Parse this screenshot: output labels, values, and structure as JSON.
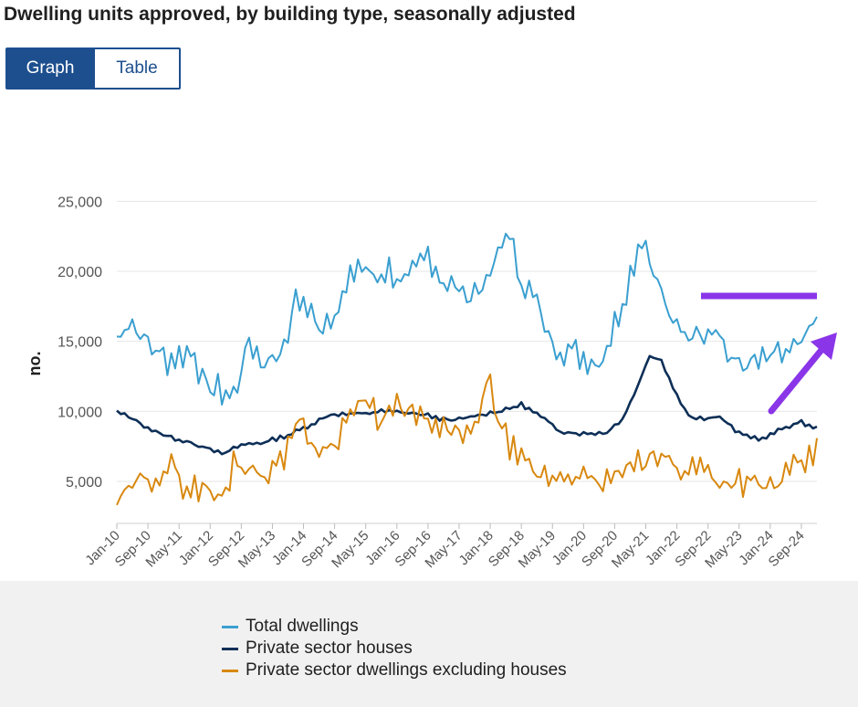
{
  "title": "Dwelling units approved, by building type, seasonally adjusted",
  "tabs": [
    {
      "label": "Graph",
      "active": true
    },
    {
      "label": "Table",
      "active": false
    }
  ],
  "annotation_color": "#8a35e8",
  "chart_data": {
    "type": "line",
    "ylabel": "no.",
    "xlabel": "",
    "ylim": [
      2000,
      26000
    ],
    "y_ticks": [
      5000,
      10000,
      15000,
      20000,
      25000
    ],
    "y_tick_labels": [
      "5,000",
      "10,000",
      "15,000",
      "20,000",
      "25,000"
    ],
    "x_tick_labels": [
      "Jan-10",
      "Sep-10",
      "May-11",
      "Jan-12",
      "Sep-12",
      "May-13",
      "Jan-14",
      "Sep-14",
      "May-15",
      "Jan-16",
      "Sep-16",
      "May-17",
      "Jan-18",
      "Sep-18",
      "May-19",
      "Jan-20",
      "Sep-20",
      "May-21",
      "Jan-22",
      "Sep-22",
      "May-23",
      "Jan-24",
      "Sep-24"
    ],
    "x_tick_index": [
      0,
      8,
      16,
      24,
      32,
      40,
      48,
      56,
      64,
      72,
      80,
      88,
      96,
      104,
      112,
      120,
      128,
      136,
      144,
      152,
      160,
      168,
      176
    ],
    "grid": true,
    "legend_position": "bottom-left",
    "series": [
      {
        "name": "Total dwellings",
        "color": "#3a9fd0",
        "values": []
      },
      {
        "name": "Private sector houses",
        "color": "#0d2f57",
        "values": []
      },
      {
        "name": "Private sector dwellings excluding houses",
        "color": "#d8880f",
        "values": []
      }
    ],
    "total_dwellings_anchors": [
      [
        0,
        15000
      ],
      [
        3,
        16700
      ],
      [
        8,
        14800
      ],
      [
        13,
        13700
      ],
      [
        20,
        14400
      ],
      [
        22,
        11900
      ],
      [
        30,
        11100
      ],
      [
        34,
        15000
      ],
      [
        38,
        13400
      ],
      [
        44,
        15000
      ],
      [
        46,
        18400
      ],
      [
        52,
        16100
      ],
      [
        58,
        17900
      ],
      [
        62,
        20600
      ],
      [
        66,
        19500
      ],
      [
        70,
        20200
      ],
      [
        74,
        18800
      ],
      [
        80,
        21300
      ],
      [
        84,
        19300
      ],
      [
        90,
        18300
      ],
      [
        96,
        19400
      ],
      [
        100,
        23000
      ],
      [
        104,
        19500
      ],
      [
        108,
        17700
      ],
      [
        110,
        15800
      ],
      [
        114,
        14600
      ],
      [
        120,
        13900
      ],
      [
        124,
        13600
      ],
      [
        127,
        15400
      ],
      [
        130,
        17900
      ],
      [
        135,
        22700
      ],
      [
        138,
        20200
      ],
      [
        143,
        15900
      ],
      [
        148,
        15600
      ],
      [
        154,
        16300
      ],
      [
        158,
        13400
      ],
      [
        165,
        13400
      ],
      [
        170,
        13900
      ],
      [
        176,
        14500
      ],
      [
        180,
        16500
      ]
    ],
    "houses_anchors": [
      [
        0,
        9950
      ],
      [
        4,
        9500
      ],
      [
        10,
        8500
      ],
      [
        18,
        7800
      ],
      [
        24,
        7400
      ],
      [
        27,
        6900
      ],
      [
        32,
        7600
      ],
      [
        38,
        7800
      ],
      [
        44,
        8300
      ],
      [
        48,
        8800
      ],
      [
        55,
        9800
      ],
      [
        62,
        9800
      ],
      [
        68,
        10000
      ],
      [
        75,
        9900
      ],
      [
        80,
        9700
      ],
      [
        86,
        9300
      ],
      [
        92,
        9700
      ],
      [
        100,
        10100
      ],
      [
        104,
        10500
      ],
      [
        108,
        9800
      ],
      [
        114,
        8600
      ],
      [
        120,
        8400
      ],
      [
        126,
        8500
      ],
      [
        130,
        9500
      ],
      [
        133,
        11200
      ],
      [
        137,
        14000
      ],
      [
        140,
        13600
      ],
      [
        145,
        10600
      ],
      [
        148,
        9500
      ],
      [
        155,
        9600
      ],
      [
        160,
        8400
      ],
      [
        166,
        8000
      ],
      [
        172,
        8900
      ],
      [
        176,
        9200
      ],
      [
        180,
        8800
      ]
    ],
    "excl_houses_anchors": [
      [
        0,
        3200
      ],
      [
        4,
        4600
      ],
      [
        10,
        5500
      ],
      [
        14,
        6000
      ],
      [
        18,
        4500
      ],
      [
        22,
        4600
      ],
      [
        26,
        3800
      ],
      [
        28,
        4000
      ],
      [
        30,
        6700
      ],
      [
        36,
        5600
      ],
      [
        42,
        6100
      ],
      [
        46,
        9400
      ],
      [
        48,
        8700
      ],
      [
        52,
        7200
      ],
      [
        56,
        7900
      ],
      [
        60,
        9900
      ],
      [
        64,
        10500
      ],
      [
        68,
        9400
      ],
      [
        72,
        10200
      ],
      [
        76,
        9900
      ],
      [
        80,
        9000
      ],
      [
        84,
        8500
      ],
      [
        88,
        8700
      ],
      [
        92,
        8200
      ],
      [
        96,
        12800
      ],
      [
        98,
        9000
      ],
      [
        104,
        6300
      ],
      [
        108,
        5400
      ],
      [
        112,
        5300
      ],
      [
        118,
        5700
      ],
      [
        122,
        4700
      ],
      [
        126,
        5100
      ],
      [
        130,
        5600
      ],
      [
        135,
        6300
      ],
      [
        140,
        6800
      ],
      [
        145,
        5900
      ],
      [
        150,
        6100
      ],
      [
        156,
        4900
      ],
      [
        160,
        5100
      ],
      [
        166,
        4500
      ],
      [
        170,
        4900
      ],
      [
        174,
        5800
      ],
      [
        178,
        6500
      ],
      [
        180,
        7200
      ]
    ]
  }
}
